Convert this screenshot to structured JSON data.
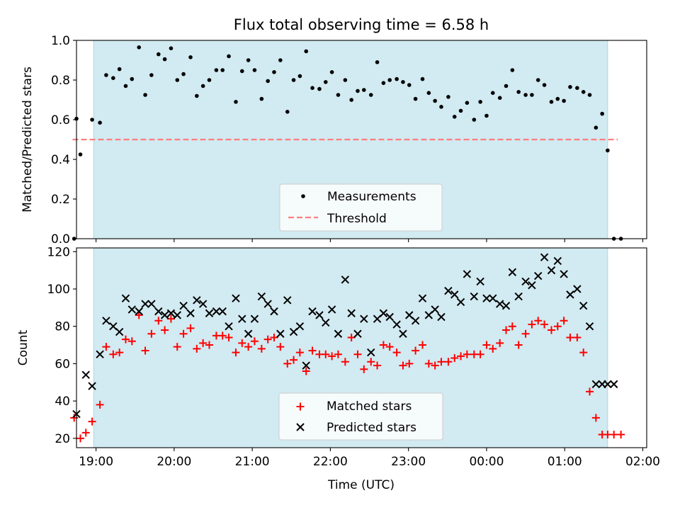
{
  "figure": {
    "title": "Flux total observing time = 6.58 h",
    "xlabel": "Time (UTC)"
  },
  "colors": {
    "shade": "#add8e6",
    "measurement": "#000000",
    "threshold": "#ff7f7f",
    "matched": "#ff0000",
    "predicted": "#000000"
  },
  "x_tick_labels": [
    "19:00",
    "20:00",
    "21:00",
    "22:00",
    "23:00",
    "00:00",
    "01:00",
    "02:00"
  ],
  "chart_data": [
    {
      "type": "scatter",
      "ylabel": "Matched/Predicted stars",
      "xlim": [
        -0.25,
        7.05
      ],
      "ylim": [
        0,
        1.0
      ],
      "x_ticks": [
        0,
        1,
        2,
        3,
        4,
        5,
        6,
        7
      ],
      "y_ticks": [
        0,
        0.2,
        0.4,
        0.6,
        0.8,
        1.0
      ],
      "y_tick_labels": [
        "0.0",
        "0.2",
        "0.4",
        "0.6",
        "0.8",
        "1.0"
      ],
      "grid": false,
      "legend_position": "bottom-center",
      "shaded_x_range": [
        -0.03,
        6.55
      ],
      "threshold": 0.5,
      "series": [
        {
          "name": "Measurements",
          "marker": "dot",
          "x": [
            -0.28,
            -0.25,
            -0.2,
            -0.05,
            0.05,
            0.13,
            0.22,
            0.3,
            0.38,
            0.46,
            0.55,
            0.63,
            0.71,
            0.8,
            0.88,
            0.96,
            1.04,
            1.12,
            1.21,
            1.29,
            1.37,
            1.45,
            1.54,
            1.62,
            1.7,
            1.79,
            1.87,
            1.95,
            2.03,
            2.12,
            2.2,
            2.28,
            2.36,
            2.45,
            2.53,
            2.61,
            2.69,
            2.77,
            2.86,
            2.94,
            3.02,
            3.1,
            3.19,
            3.27,
            3.35,
            3.43,
            3.52,
            3.6,
            3.68,
            3.76,
            3.85,
            3.93,
            4.01,
            4.09,
            4.18,
            4.26,
            4.34,
            4.42,
            4.51,
            4.59,
            4.67,
            4.75,
            4.84,
            4.92,
            5.0,
            5.08,
            5.17,
            5.25,
            5.33,
            5.41,
            5.5,
            5.58,
            5.66,
            5.74,
            5.83,
            5.91,
            5.99,
            6.07,
            6.16,
            6.24,
            6.32,
            6.4,
            6.48,
            6.55,
            6.63,
            6.72
          ],
          "y": [
            0.0,
            0.605,
            0.425,
            0.6,
            0.585,
            0.825,
            0.81,
            0.855,
            0.77,
            0.805,
            0.965,
            0.725,
            0.825,
            0.93,
            0.905,
            0.96,
            0.8,
            0.83,
            0.915,
            0.72,
            0.77,
            0.8,
            0.85,
            0.85,
            0.92,
            0.69,
            0.845,
            0.9,
            0.85,
            0.705,
            0.795,
            0.84,
            0.9,
            0.64,
            0.8,
            0.82,
            0.945,
            0.76,
            0.755,
            0.79,
            0.84,
            0.725,
            0.8,
            0.7,
            0.745,
            0.75,
            0.725,
            0.89,
            0.785,
            0.8,
            0.805,
            0.79,
            0.775,
            0.705,
            0.805,
            0.735,
            0.695,
            0.665,
            0.715,
            0.615,
            0.645,
            0.685,
            0.6,
            0.69,
            0.62,
            0.735,
            0.71,
            0.77,
            0.85,
            0.74,
            0.725,
            0.725,
            0.8,
            0.775,
            0.69,
            0.705,
            0.695,
            0.765,
            0.76,
            0.74,
            0.725,
            0.56,
            0.63,
            0.445,
            0.0,
            0.0
          ]
        },
        {
          "name": "Threshold",
          "marker": "dashed-line"
        }
      ]
    },
    {
      "type": "scatter",
      "ylabel": "Count",
      "xlim": [
        -0.25,
        7.05
      ],
      "ylim": [
        15,
        122
      ],
      "x_ticks": [
        0,
        1,
        2,
        3,
        4,
        5,
        6,
        7
      ],
      "y_ticks": [
        20,
        40,
        60,
        80,
        100,
        120
      ],
      "y_tick_labels": [
        "20",
        "40",
        "60",
        "80",
        "100",
        "120"
      ],
      "grid": false,
      "legend_position": "bottom-center",
      "shaded_x_range": [
        -0.03,
        6.55
      ],
      "series": [
        {
          "name": "Matched stars",
          "marker": "plus",
          "x": [
            -0.28,
            -0.2,
            -0.13,
            -0.05,
            0.05,
            0.13,
            0.22,
            0.3,
            0.38,
            0.46,
            0.55,
            0.63,
            0.71,
            0.8,
            0.88,
            0.96,
            1.04,
            1.12,
            1.21,
            1.29,
            1.37,
            1.45,
            1.54,
            1.62,
            1.7,
            1.79,
            1.87,
            1.95,
            2.03,
            2.12,
            2.2,
            2.28,
            2.36,
            2.45,
            2.53,
            2.61,
            2.69,
            2.77,
            2.86,
            2.94,
            3.02,
            3.1,
            3.19,
            3.27,
            3.35,
            3.43,
            3.52,
            3.6,
            3.68,
            3.76,
            3.85,
            3.93,
            4.01,
            4.09,
            4.18,
            4.26,
            4.34,
            4.42,
            4.51,
            4.59,
            4.67,
            4.75,
            4.84,
            4.92,
            5.0,
            5.08,
            5.17,
            5.25,
            5.33,
            5.41,
            5.5,
            5.58,
            5.66,
            5.74,
            5.83,
            5.91,
            5.99,
            6.07,
            6.16,
            6.24,
            6.32,
            6.4,
            6.48,
            6.55,
            6.63,
            6.72
          ],
          "y": [
            31,
            20,
            23,
            29,
            38,
            69,
            65,
            66,
            73,
            72,
            86,
            67,
            76,
            83,
            78,
            84,
            69,
            76,
            79,
            68,
            71,
            70,
            75,
            75,
            74,
            66,
            71,
            69,
            72,
            68,
            73,
            74,
            69,
            60,
            62,
            66,
            56,
            67,
            65,
            65,
            64,
            65,
            61,
            74,
            65,
            57,
            61,
            59,
            70,
            69,
            66,
            59,
            60,
            67,
            70,
            60,
            59,
            61,
            61,
            63,
            64,
            65,
            65,
            65,
            70,
            68,
            71,
            78,
            80,
            70,
            76,
            81,
            83,
            81,
            78,
            80,
            83,
            74,
            74,
            66,
            45,
            31,
            22,
            22,
            22,
            22
          ]
        },
        {
          "name": "Predicted stars",
          "marker": "x",
          "x": [
            -0.25,
            -0.13,
            -0.05,
            0.05,
            0.13,
            0.22,
            0.3,
            0.38,
            0.46,
            0.55,
            0.63,
            0.71,
            0.8,
            0.88,
            0.96,
            1.04,
            1.12,
            1.21,
            1.29,
            1.37,
            1.45,
            1.54,
            1.62,
            1.7,
            1.79,
            1.87,
            1.95,
            2.03,
            2.12,
            2.2,
            2.28,
            2.36,
            2.45,
            2.53,
            2.61,
            2.69,
            2.77,
            2.86,
            2.94,
            3.02,
            3.1,
            3.19,
            3.27,
            3.35,
            3.43,
            3.52,
            3.6,
            3.68,
            3.76,
            3.85,
            3.93,
            4.01,
            4.09,
            4.18,
            4.26,
            4.34,
            4.42,
            4.51,
            4.59,
            4.67,
            4.75,
            4.84,
            4.92,
            5.0,
            5.08,
            5.17,
            5.25,
            5.33,
            5.41,
            5.5,
            5.58,
            5.66,
            5.74,
            5.83,
            5.91,
            5.99,
            6.07,
            6.16,
            6.24,
            6.32,
            6.4,
            6.48,
            6.55,
            6.63
          ],
          "y": [
            33,
            54,
            48,
            65,
            83,
            80,
            77,
            95,
            89,
            88,
            92,
            92,
            88,
            86,
            87,
            86,
            91,
            87,
            94,
            92,
            87,
            88,
            88,
            80,
            95,
            84,
            76,
            84,
            96,
            92,
            88,
            76,
            94,
            77,
            80,
            59,
            88,
            86,
            82,
            89,
            76,
            105,
            87,
            76,
            84,
            66,
            84,
            87,
            85,
            81,
            76,
            86,
            83,
            95,
            86,
            89,
            85,
            99,
            97,
            93,
            108,
            96,
            104,
            95,
            95,
            92,
            91,
            109,
            96,
            104,
            102,
            107,
            117,
            110,
            115,
            108,
            97,
            100,
            91,
            80,
            49,
            49,
            49,
            49
          ]
        }
      ]
    }
  ]
}
